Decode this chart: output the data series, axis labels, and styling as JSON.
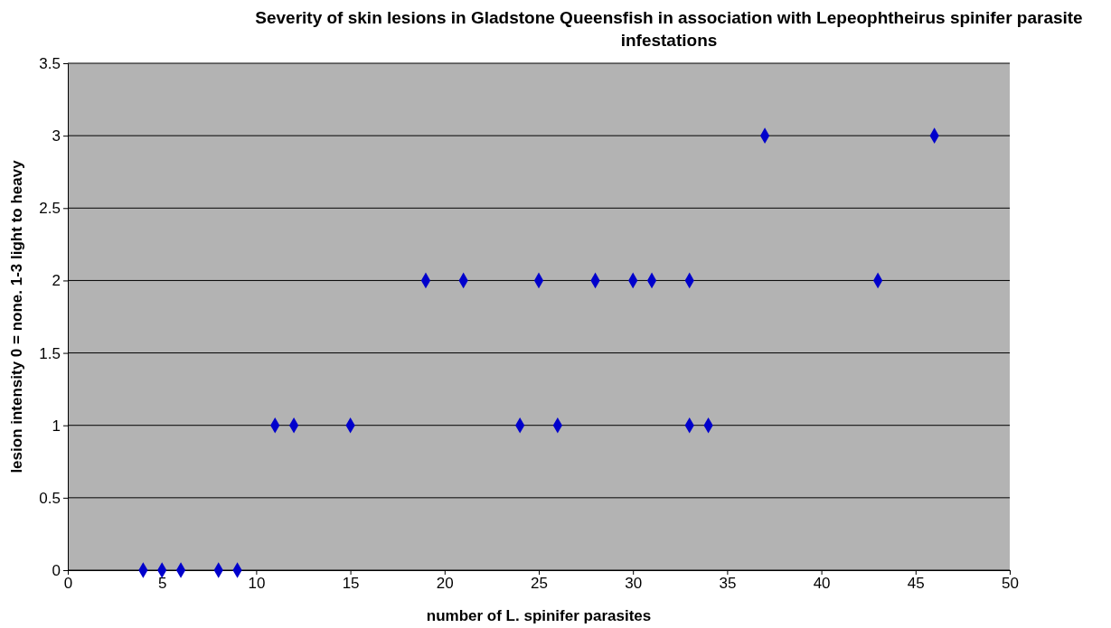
{
  "chart_data": {
    "type": "scatter",
    "title": "Severity of skin lesions in Gladstone Queensfish in association with Lepeophtheirus spinifer parasite infestations",
    "xlabel": "number of L. spinifer parasites",
    "ylabel": "lesion intensity 0 = none. 1-3 light to heavy",
    "series": [
      {
        "color": "#0000cc",
        "x": [
          4,
          5,
          6,
          8,
          9,
          11,
          12,
          15,
          24,
          26,
          33,
          34,
          19,
          21,
          25,
          28,
          30,
          31,
          33,
          43,
          37,
          46
        ],
        "values": [
          0,
          0,
          0,
          0,
          0,
          1,
          1,
          1,
          1,
          1,
          1,
          1,
          2,
          2,
          2,
          2,
          2,
          2,
          2,
          2,
          3,
          3
        ]
      }
    ],
    "xlim": [
      0,
      50
    ],
    "xticks": [
      0,
      5,
      10,
      15,
      20,
      25,
      30,
      35,
      40,
      45,
      50
    ],
    "ylim": [
      0,
      3.5
    ],
    "yticks": [
      0,
      0.5,
      1,
      1.5,
      2,
      2.5,
      3,
      3.5
    ],
    "grid": "y",
    "marker": "diamond"
  }
}
